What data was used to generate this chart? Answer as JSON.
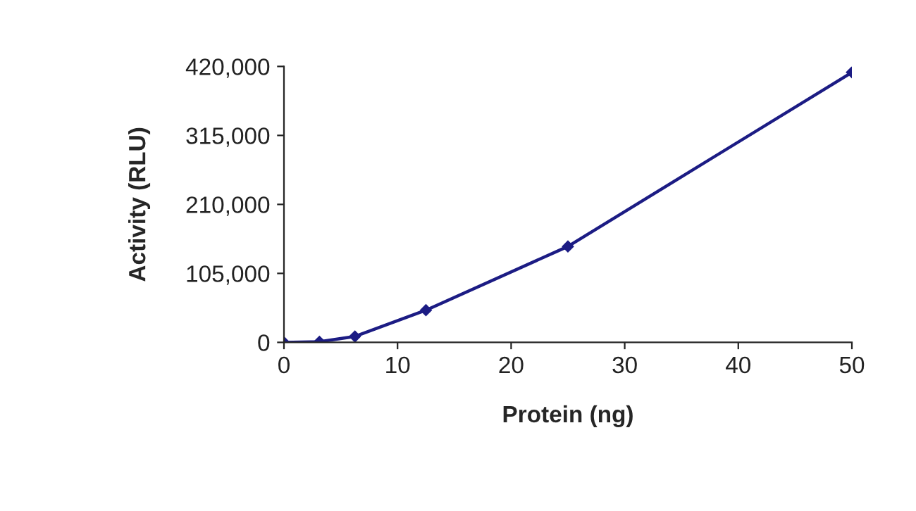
{
  "chart_data": {
    "type": "line",
    "xlabel": "Protein (ng)",
    "ylabel": "Activity (RLU)",
    "x": [
      0,
      3.125,
      6.25,
      12.5,
      25,
      50
    ],
    "series": [
      {
        "color": "#1c1c84",
        "values": [
          0,
          1000,
          9000,
          49000,
          146000,
          411000
        ]
      }
    ],
    "xlim": [
      0,
      50
    ],
    "xticks": [
      0,
      10,
      20,
      30,
      40,
      50
    ],
    "ylim": [
      0,
      420000
    ],
    "yticks": [
      {
        "value": 0,
        "label": "0"
      },
      {
        "value": 105000,
        "label": "105,000"
      },
      {
        "value": 210000,
        "label": "210,000"
      },
      {
        "value": 315000,
        "label": "315,000"
      },
      {
        "value": 420000,
        "label": "420,000"
      }
    ],
    "grid": false,
    "legend": false,
    "marker": "diamond",
    "line_style": "solid"
  }
}
